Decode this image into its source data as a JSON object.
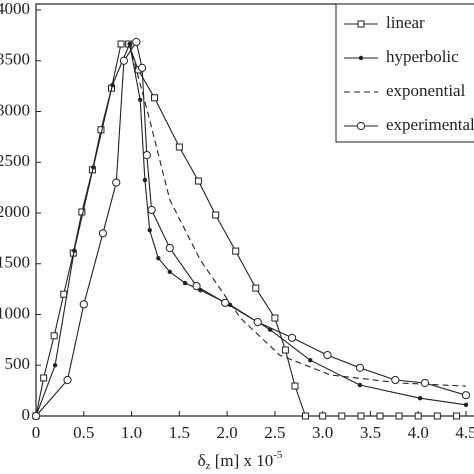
{
  "chart_data": {
    "type": "line",
    "xlabel": {
      "main": "δ",
      "sub": "z",
      "rest": " [m] x 10",
      "sup": "-5"
    },
    "xlim": [
      0,
      4.5
    ],
    "xticks": [
      0,
      0.5,
      {
        "value": 1,
        "label": "1.0"
      },
      1.5,
      {
        "value": 2,
        "label": "2.0"
      },
      2.5,
      {
        "value": 3,
        "label": "3.0"
      },
      3.5,
      {
        "value": 4,
        "label": "4.0"
      },
      4.5
    ],
    "ylim": [
      0,
      4000
    ],
    "yticks": [
      0,
      500,
      1000,
      1500,
      2000,
      2500,
      3000,
      3500,
      4000
    ],
    "legend": "upper right",
    "series": [
      {
        "name": "linear",
        "color": "#222",
        "marker": "square",
        "dash": "none",
        "x": [
          0,
          0.08,
          0.19,
          0.29,
          0.39,
          0.48,
          0.59,
          0.68,
          0.79,
          0.89,
          0.97,
          1.07,
          1.24,
          1.5,
          1.7,
          1.88,
          2.09,
          2.3,
          2.5,
          2.61,
          2.71,
          2.82,
          3.0,
          3.2,
          3.4,
          3.6,
          3.8,
          4.0,
          4.2,
          4.4
        ],
        "values": [
          0,
          375,
          790,
          1200,
          1605,
          2010,
          2425,
          2820,
          3230,
          3665,
          3665,
          3410,
          3135,
          2650,
          2315,
          1980,
          1625,
          1260,
          965,
          650,
          295,
          0,
          0,
          0,
          0,
          0,
          0,
          0,
          0,
          0
        ]
      },
      {
        "name": "hyperbolic",
        "color": "#222",
        "marker": "dot",
        "dash": "none",
        "x": [
          0,
          0.2,
          0.4,
          0.6,
          0.8,
          0.98,
          1.09,
          1.14,
          1.19,
          1.28,
          1.4,
          1.56,
          1.72,
          2.03,
          2.45,
          2.87,
          3.39,
          4.02,
          4.5
        ],
        "values": [
          0,
          500,
          1630,
          2450,
          3260,
          3665,
          3115,
          2325,
          1830,
          1555,
          1420,
          1310,
          1240,
          1095,
          850,
          550,
          305,
          175,
          110
        ]
      },
      {
        "name": "exponential",
        "color": "#222",
        "marker": "none",
        "dash": "6,4",
        "x": [
          0.98,
          1.19,
          1.4,
          1.72,
          2.14,
          2.55,
          3.08,
          3.81,
          4.5
        ],
        "values": [
          3665,
          2915,
          2130,
          1535,
          965,
          600,
          405,
          325,
          295
        ]
      },
      {
        "name": "experimental",
        "color": "#222",
        "marker": "circle",
        "dash": "none",
        "x": [
          0,
          0.33,
          0.5,
          0.7,
          0.84,
          0.92,
          1.05,
          1.11,
          1.16,
          1.21,
          1.4,
          1.68,
          1.98,
          2.32,
          2.68,
          3.05,
          3.39,
          3.76,
          4.07,
          4.5
        ],
        "values": [
          0,
          355,
          1100,
          1800,
          2300,
          3500,
          3685,
          3430,
          2570,
          2030,
          1655,
          1280,
          1115,
          925,
          770,
          600,
          475,
          355,
          325,
          205
        ]
      }
    ]
  }
}
